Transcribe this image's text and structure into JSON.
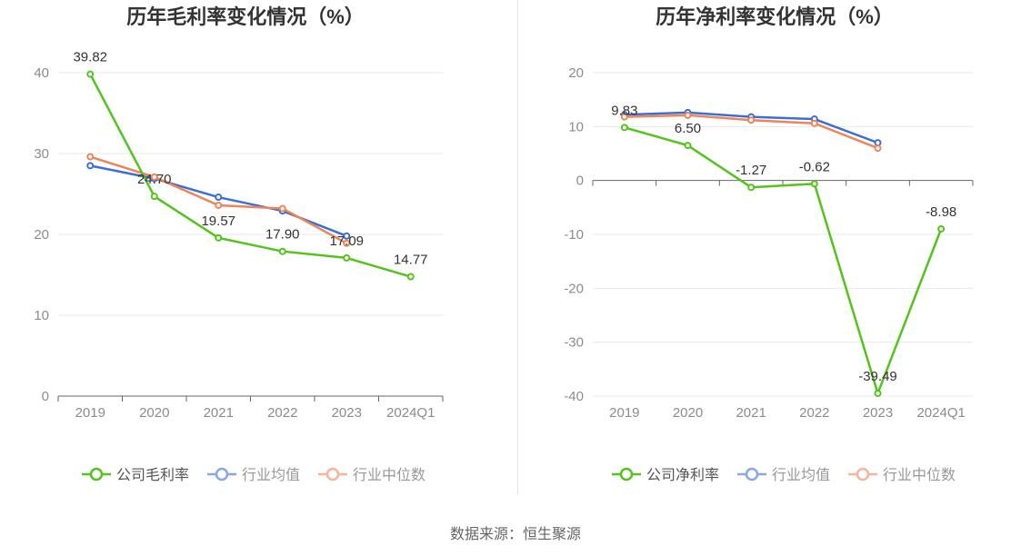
{
  "colors": {
    "company": "#52c41a",
    "industry_avg": "#3a6fd8",
    "industry_median": "#f08456",
    "grid": "#e6e9f0",
    "axis": "#666666",
    "tick_label": "#8c8c8c",
    "title": "#333333"
  },
  "source_text": "数据来源：恒生聚源",
  "chart_data": [
    {
      "type": "line",
      "title": "历年毛利率变化情况（%）",
      "categories": [
        "2019",
        "2020",
        "2021",
        "2022",
        "2023",
        "2024Q1"
      ],
      "ylim": [
        0,
        40
      ],
      "yticks": [
        0,
        10,
        20,
        30,
        40
      ],
      "grid": true,
      "legend_position": "bottom",
      "series": [
        {
          "name": "公司毛利率",
          "key": "company",
          "values": [
            39.82,
            24.7,
            19.57,
            17.9,
            17.09,
            14.77
          ],
          "show_labels": true
        },
        {
          "name": "行业均值",
          "key": "industry_avg",
          "values": [
            28.5,
            26.9,
            24.6,
            22.9,
            19.8,
            null
          ],
          "show_labels": false
        },
        {
          "name": "行业中位数",
          "key": "industry_median",
          "values": [
            29.6,
            27.1,
            23.6,
            23.2,
            18.9,
            null
          ],
          "show_labels": false
        }
      ],
      "data_labels": [
        "39.82",
        "24.70",
        "19.57",
        "17.90",
        "17.09",
        "14.77"
      ]
    },
    {
      "type": "line",
      "title": "历年净利率变化情况（%）",
      "categories": [
        "2019",
        "2020",
        "2021",
        "2022",
        "2023",
        "2024Q1"
      ],
      "ylim": [
        -40,
        20
      ],
      "yticks": [
        -40,
        -30,
        -20,
        -10,
        0,
        10,
        20
      ],
      "grid": true,
      "legend_position": "bottom",
      "series": [
        {
          "name": "公司净利率",
          "key": "company",
          "values": [
            9.83,
            6.5,
            -1.27,
            -0.62,
            -39.49,
            -8.98
          ],
          "show_labels": true
        },
        {
          "name": "行业均值",
          "key": "industry_avg",
          "values": [
            12.2,
            12.6,
            11.8,
            11.4,
            7.0,
            null
          ],
          "show_labels": false
        },
        {
          "name": "行业中位数",
          "key": "industry_median",
          "values": [
            11.8,
            12.1,
            11.2,
            10.6,
            6.0,
            null
          ],
          "show_labels": false
        }
      ],
      "data_labels": [
        "9.83",
        "6.50",
        "-1.27",
        "-0.62",
        "-39.49",
        "-8.98"
      ]
    }
  ]
}
